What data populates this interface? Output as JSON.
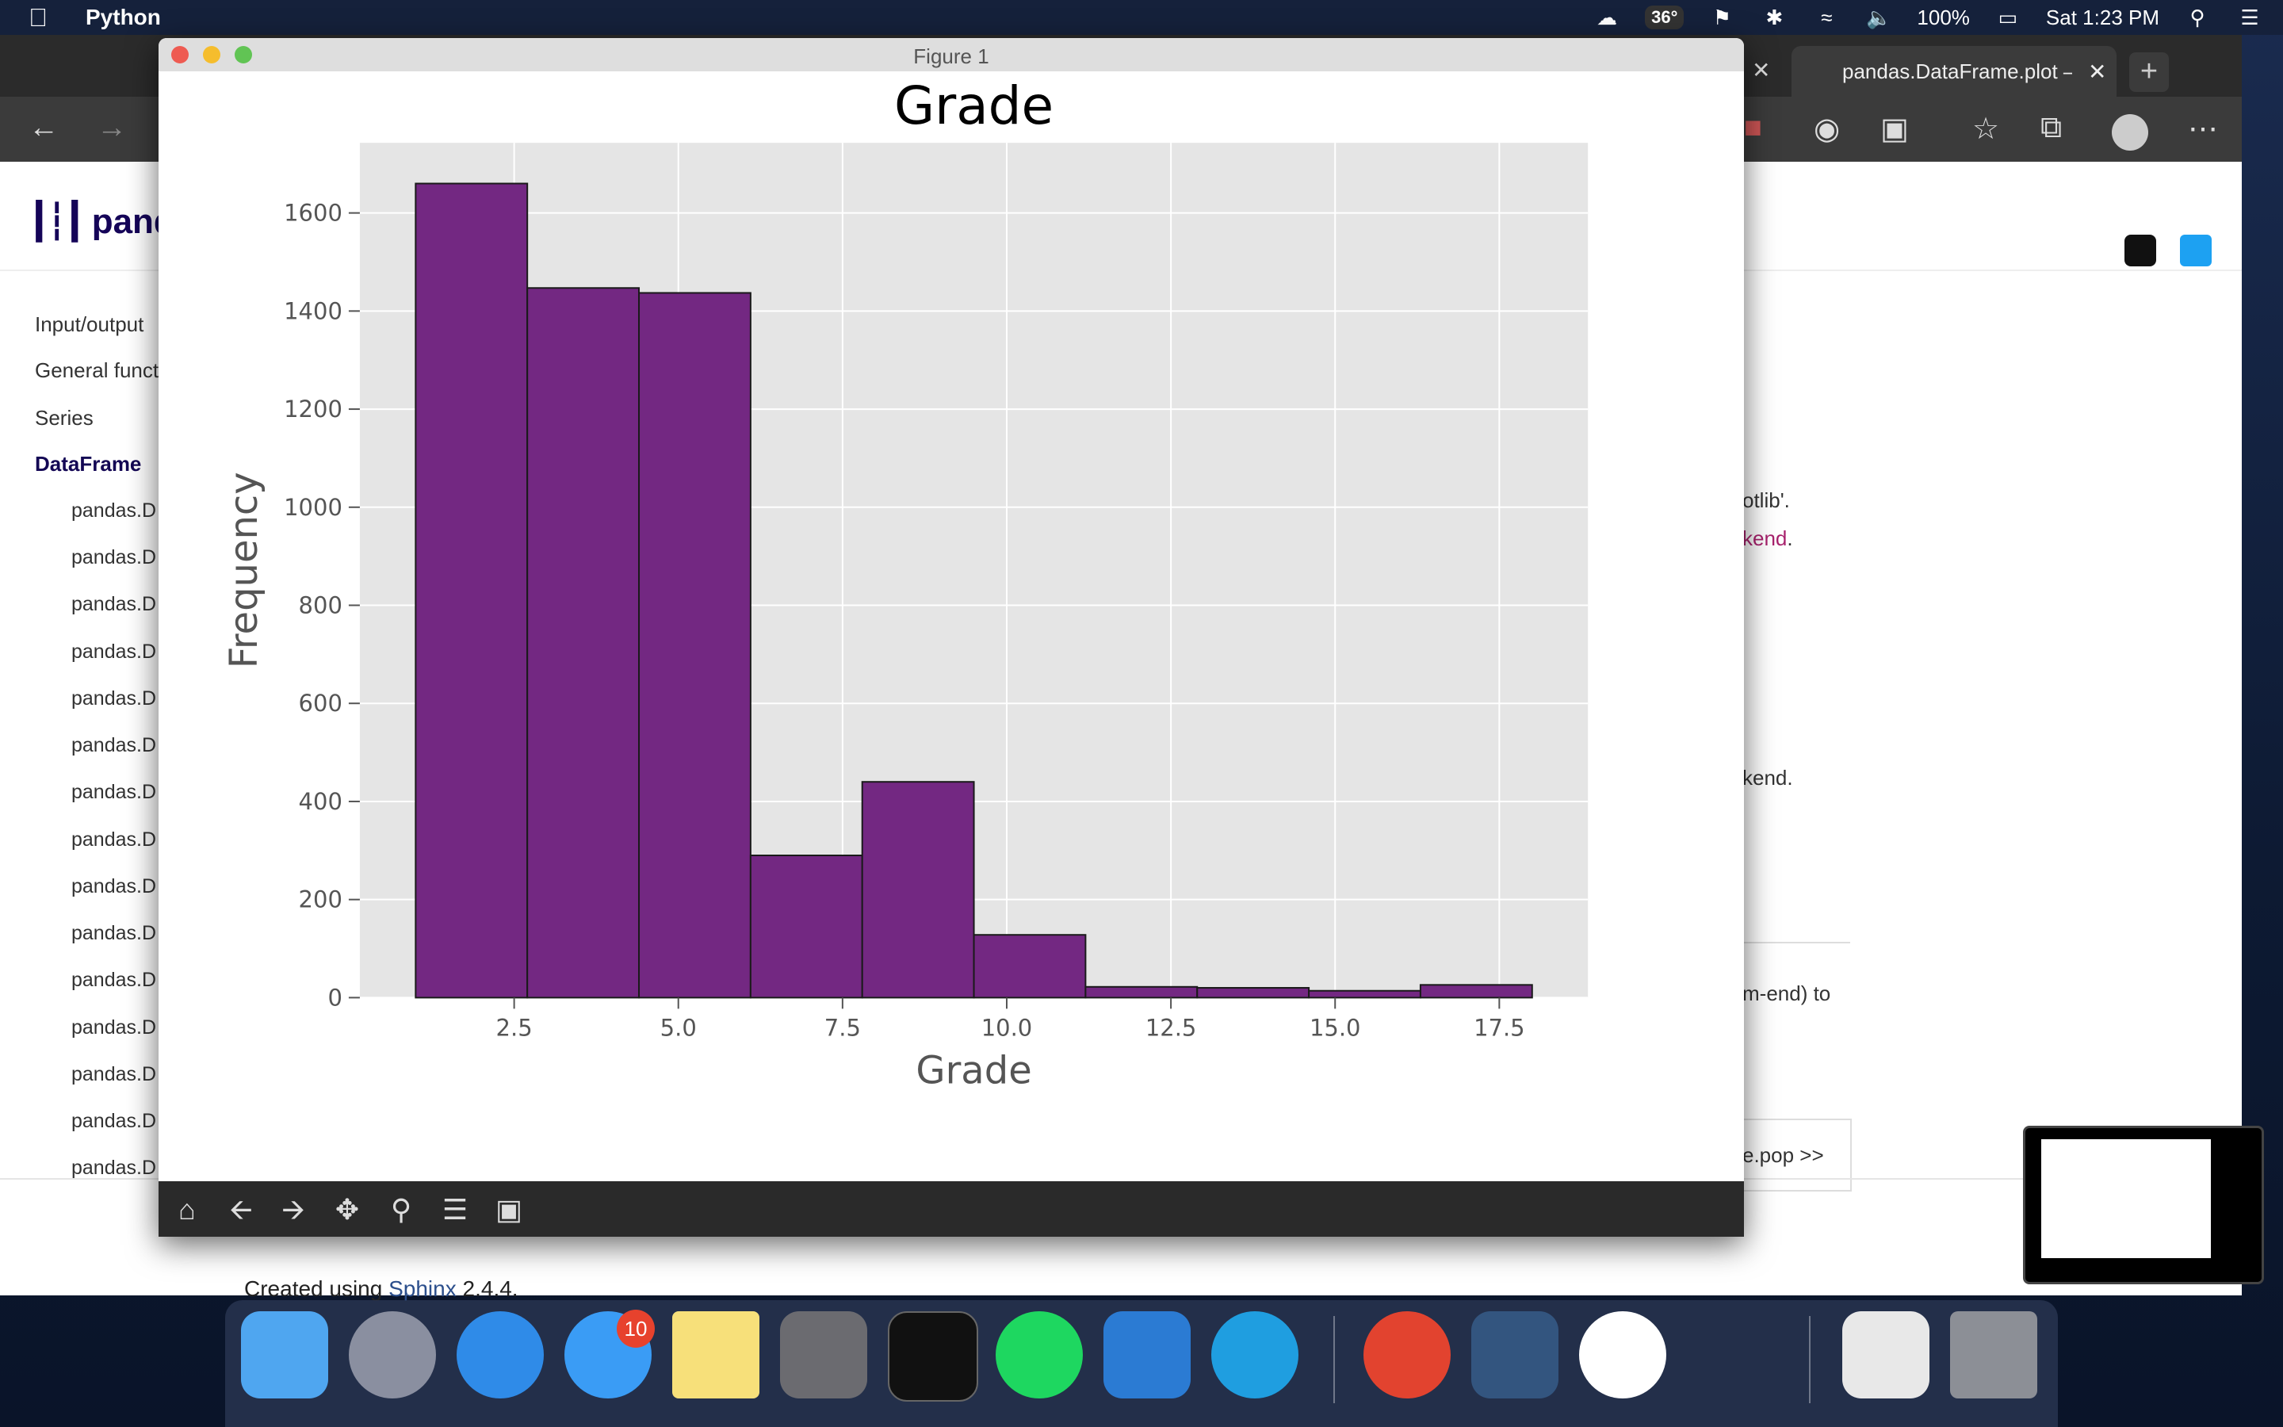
{
  "menubar": {
    "app_name": "Python",
    "temperature": "36°",
    "battery": "100%",
    "clock": "Sat 1:23 PM"
  },
  "browser": {
    "tab_title": "pandas.DataFrame.plot –",
    "sidebar": {
      "items": [
        "Input/output",
        "General funct",
        "Series",
        "DataFrame"
      ],
      "sub_items": [
        "pandas.D",
        "pandas.D",
        "pandas.D",
        "pandas.D",
        "pandas.D",
        "pandas.D",
        "pandas.D",
        "pandas.D",
        "pandas.D",
        "pandas.D",
        "pandas.D",
        "pandas.D",
        "pandas.D",
        "pandas.D",
        "pandas.D"
      ]
    },
    "content_fragments": {
      "line1": "otlib'.",
      "line2_link": "kend",
      "line2_tail": ".",
      "line3": "kend.",
      "line4": "m-end) to",
      "next_link": "e.pop >>"
    },
    "footer": {
      "prefix": "Created using ",
      "sphinx": "Sphinx",
      "version": " 2.4.4."
    }
  },
  "figure_window": {
    "title": "Figure 1",
    "toolbar": [
      "home-icon",
      "back-arrow-icon",
      "forward-arrow-icon",
      "pan-icon",
      "zoom-icon",
      "configure-subplots-icon",
      "save-icon"
    ]
  },
  "dock": {
    "messages_badge": "10"
  },
  "chart_data": {
    "type": "bar",
    "title": "Grade",
    "xlabel": "Grade",
    "ylabel": "Frequency",
    "bin_edges": [
      1.0,
      2.7,
      4.4,
      6.1,
      7.8,
      9.5,
      11.2,
      12.9,
      14.6,
      16.3,
      18.0
    ],
    "values": [
      1660,
      1447,
      1437,
      290,
      440,
      128,
      22,
      20,
      14,
      26
    ],
    "xticks": [
      2.5,
      5.0,
      7.5,
      10.0,
      12.5,
      15.0,
      17.5
    ],
    "xtick_labels": [
      "2.5",
      "5.0",
      "7.5",
      "10.0",
      "12.5",
      "15.0",
      "17.5"
    ],
    "yticks": [
      0,
      200,
      400,
      600,
      800,
      1000,
      1200,
      1400,
      1600
    ],
    "ytick_labels": [
      "0",
      "200",
      "400",
      "600",
      "800",
      "1000",
      "1200",
      "1400",
      "1600"
    ],
    "xlim": [
      0.15,
      18.85
    ],
    "ylim": [
      0,
      1743
    ],
    "grid": true,
    "bar_color": "#732882",
    "edge_color": "#1a1a1a",
    "axes_bg": "#e5e5e5"
  }
}
